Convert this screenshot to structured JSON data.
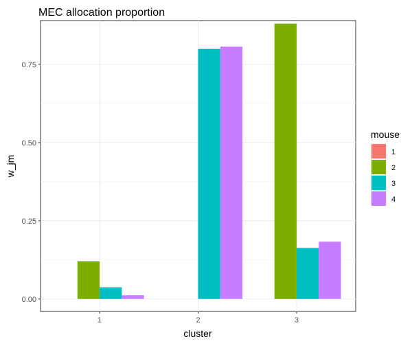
{
  "chart_data": {
    "type": "bar",
    "title": "MEC allocation proportion",
    "xlabel": "cluster",
    "ylabel": "w_jm",
    "categories": [
      "1",
      "2",
      "3"
    ],
    "ylim": [
      -0.04,
      0.89
    ],
    "yticks": [
      0.0,
      0.25,
      0.5,
      0.75
    ],
    "ytick_labels": [
      "0.00",
      "0.25",
      "0.50",
      "0.75"
    ],
    "grid": true,
    "legend": {
      "title": "mouse",
      "position": "right"
    },
    "series": [
      {
        "name": "1",
        "color": "#F8766D",
        "values": [
          0.0,
          0.0,
          0.0
        ]
      },
      {
        "name": "2",
        "color": "#7CAE00",
        "values": [
          0.12,
          0.0,
          0.88
        ]
      },
      {
        "name": "3",
        "color": "#00BFC4",
        "values": [
          0.037,
          0.8,
          0.163
        ]
      },
      {
        "name": "4",
        "color": "#C77CFF",
        "values": [
          0.012,
          0.807,
          0.183
        ]
      }
    ]
  }
}
